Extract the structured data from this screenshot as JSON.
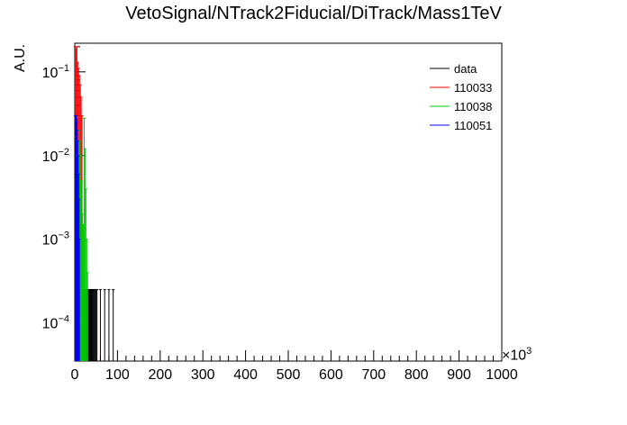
{
  "chart_data": {
    "type": "histogram",
    "title": "VetoSignal/NTrack2Fiducial/DiTrack/Mass1TeV",
    "xlabel": "",
    "ylabel": "A.U.",
    "x_multiplier_label": "×10",
    "x_multiplier_exponent": "3",
    "xlim": [
      0,
      1000
    ],
    "ylog": true,
    "ylim": [
      3.5e-05,
      0.22
    ],
    "x_ticks": [
      0,
      100,
      200,
      300,
      400,
      500,
      600,
      700,
      800,
      900,
      1000
    ],
    "y_ticks": [
      {
        "value": 0.0001,
        "base": "10",
        "exp": "−4"
      },
      {
        "value": 0.001,
        "base": "10",
        "exp": "−3"
      },
      {
        "value": 0.01,
        "base": "10",
        "exp": "−2"
      },
      {
        "value": 0.1,
        "base": "10",
        "exp": "−1"
      }
    ],
    "legend_position": "top-right",
    "series": [
      {
        "name": "data",
        "color": "#000000",
        "x": [
          2,
          4,
          6,
          8,
          10,
          12,
          14,
          16,
          18,
          20,
          22,
          24,
          26,
          28,
          30,
          32,
          34,
          36,
          38,
          40,
          42,
          44,
          46,
          48,
          50,
          52,
          60,
          70,
          80,
          90
        ],
        "values": [
          0.03,
          0.012,
          0.006,
          0.0025,
          0.0012,
          0.0006,
          0.0004,
          0.00042,
          0.00028,
          0.00025,
          0.00025,
          0.00025,
          0.00025,
          0.00025,
          0.00025,
          0.00025,
          0.00025,
          0.00025,
          0.00025,
          0.00025,
          0.00025,
          0.00025,
          0.00025,
          0.00025,
          0.00025,
          0.00025,
          0.00025,
          0.00025,
          0.00025,
          0.00025
        ]
      },
      {
        "name": "110033",
        "color": "#ff0000",
        "x": [
          1,
          3,
          5,
          7,
          9,
          11,
          13,
          15,
          17
        ],
        "values": [
          0.2,
          0.19,
          0.2,
          0.13,
          0.11,
          0.09,
          0.07,
          0.05,
          0.03
        ]
      },
      {
        "name": "110038",
        "color": "#00cc00",
        "x": [
          10,
          12,
          14,
          16,
          18,
          20,
          22,
          24,
          26,
          28,
          30
        ],
        "values": [
          0.02,
          0.015,
          0.01,
          0.005,
          0.002,
          0.0015,
          0.028,
          0.012,
          0.004,
          0.001,
          0.0004
        ]
      },
      {
        "name": "110051",
        "color": "#0000ff",
        "x": [
          1,
          2,
          3,
          4,
          5,
          6,
          7,
          8,
          9,
          10,
          11
        ],
        "values": [
          0.03,
          0.028,
          0.03,
          0.027,
          0.025,
          0.02,
          0.015,
          0.01,
          0.006,
          0.003,
          0.001
        ]
      }
    ]
  }
}
